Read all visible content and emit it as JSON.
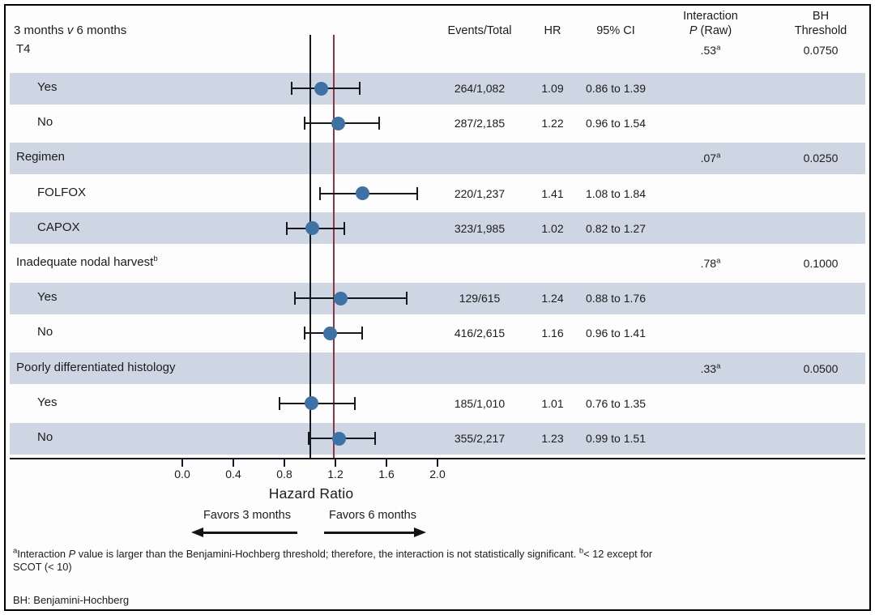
{
  "title": {
    "pre": "3 months ",
    "versus": "v",
    "post": " 6 months"
  },
  "columns": {
    "events": "Events/Total",
    "hr": "HR",
    "ci": "95% CI",
    "interaction_line1": "Interaction",
    "interaction_p": "P",
    "interaction_rest": " (Raw)",
    "bh_line1": "BH",
    "bh_line2": "Threshold"
  },
  "chart_data": {
    "type": "forest",
    "xlabel": "Hazard Ratio",
    "x_ticks": [
      "0.0",
      "0.4",
      "0.8",
      "1.2",
      "1.6",
      "2.0"
    ],
    "x_tick_values": [
      0.0,
      0.4,
      0.8,
      1.2,
      1.6,
      2.0
    ],
    "xlim": [
      0.0,
      2.35
    ],
    "reference_line_hr": 1.0,
    "overall_estimate_line_hr": 1.19,
    "band_color": "#cdd6e2",
    "marker_color": "#3d73a4",
    "reference_line_color": "#15181c",
    "overall_line_color": "#8f3340",
    "favors_left": "Favors 3 months",
    "favors_right": "Favors 6 months",
    "rows": [
      {
        "type": "group",
        "label": "T4",
        "sup": "",
        "p": ".53",
        "p_sup": "a",
        "bh": "0.0750",
        "shaded": false
      },
      {
        "type": "item",
        "label": "Yes",
        "events": "264/1,082",
        "hr_text": "1.09",
        "ci_text": "0.86 to 1.39",
        "hr": 1.09,
        "lo": 0.86,
        "hi": 1.39,
        "shaded": true
      },
      {
        "type": "item",
        "label": "No",
        "events": "287/2,185",
        "hr_text": "1.22",
        "ci_text": "0.96 to 1.54",
        "hr": 1.22,
        "lo": 0.96,
        "hi": 1.54,
        "shaded": false
      },
      {
        "type": "group",
        "label": "Regimen",
        "sup": "",
        "p": ".07",
        "p_sup": "a",
        "bh": "0.0250",
        "shaded": true
      },
      {
        "type": "item",
        "label": "FOLFOX",
        "events": "220/1,237",
        "hr_text": "1.41",
        "ci_text": "1.08 to 1.84",
        "hr": 1.41,
        "lo": 1.08,
        "hi": 1.84,
        "shaded": false
      },
      {
        "type": "item",
        "label": "CAPOX",
        "events": "323/1,985",
        "hr_text": "1.02",
        "ci_text": "0.82 to 1.27",
        "hr": 1.02,
        "lo": 0.82,
        "hi": 1.27,
        "shaded": true
      },
      {
        "type": "group",
        "label": "Inadequate nodal harvest",
        "sup": "b",
        "p": ".78",
        "p_sup": "a",
        "bh": "0.1000",
        "shaded": false
      },
      {
        "type": "item",
        "label": "Yes",
        "events": "129/615",
        "hr_text": "1.24",
        "ci_text": "0.88 to 1.76",
        "hr": 1.24,
        "lo": 0.88,
        "hi": 1.76,
        "shaded": true
      },
      {
        "type": "item",
        "label": "No",
        "events": "416/2,615",
        "hr_text": "1.16",
        "ci_text": "0.96 to 1.41",
        "hr": 1.16,
        "lo": 0.96,
        "hi": 1.41,
        "shaded": false
      },
      {
        "type": "group",
        "label": "Poorly differentiated histology",
        "sup": "",
        "p": ".33",
        "p_sup": "a",
        "bh": "0.0500",
        "shaded": true
      },
      {
        "type": "item",
        "label": "Yes",
        "events": "185/1,010",
        "hr_text": "1.01",
        "ci_text": "0.76 to 1.35",
        "hr": 1.01,
        "lo": 0.76,
        "hi": 1.35,
        "shaded": false
      },
      {
        "type": "item",
        "label": "No",
        "events": "355/2,217",
        "hr_text": "1.23",
        "ci_text": "0.99 to 1.51",
        "hr": 1.23,
        "lo": 0.99,
        "hi": 1.51,
        "shaded": true
      }
    ]
  },
  "footnotes": {
    "sup_a": "a",
    "t1": "Interaction ",
    "p_italic": "P",
    "t2": " value is larger than the Benjamini-Hochberg threshold; therefore, the interaction is not statistically significant. ",
    "sup_b": "b",
    "t3": "< 12 except for SCOT (< 10)",
    "abbrev": "BH: Benjamini-Hochberg"
  }
}
